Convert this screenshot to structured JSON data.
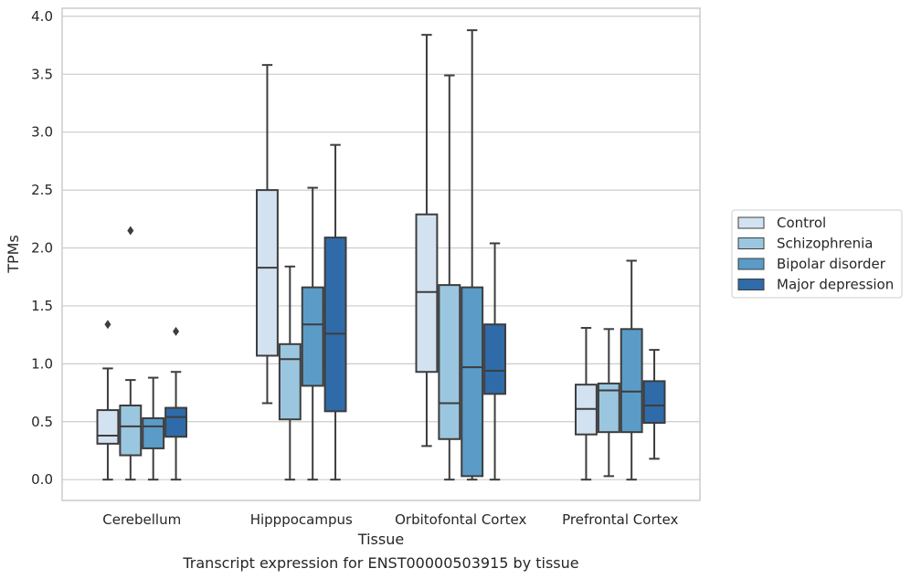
{
  "chart_data": {
    "type": "box",
    "caption": "Transcript expression for ENST00000503915 by tissue",
    "xlabel": "Tissue",
    "ylabel": "TPMs",
    "ylim": [
      -0.18,
      4.07
    ],
    "yticks": [
      "0.0",
      "0.5",
      "1.0",
      "1.5",
      "2.0",
      "2.5",
      "3.0",
      "3.5",
      "4.0"
    ],
    "grid": "horizontal",
    "legend_position": "right",
    "categories": [
      "Cerebellum",
      "Hipppocampus",
      "Orbitofontal Cortex",
      "Prefrontal Cortex"
    ],
    "series": [
      {
        "name": "Control",
        "color": "#d3e2f1",
        "boxes": [
          {
            "whislo": 0.0,
            "q1": 0.31,
            "med": 0.38,
            "q3": 0.6,
            "whishi": 0.96,
            "fliers": [
              1.34
            ]
          },
          {
            "whislo": 0.66,
            "q1": 1.07,
            "med": 1.83,
            "q3": 2.5,
            "whishi": 3.58,
            "fliers": []
          },
          {
            "whislo": 0.29,
            "q1": 0.93,
            "med": 1.62,
            "q3": 2.29,
            "whishi": 3.84,
            "fliers": []
          },
          {
            "whislo": 0.0,
            "q1": 0.39,
            "med": 0.61,
            "q3": 0.82,
            "whishi": 1.31,
            "fliers": []
          }
        ]
      },
      {
        "name": "Schizophrenia",
        "color": "#9bc6df",
        "boxes": [
          {
            "whislo": 0.0,
            "q1": 0.21,
            "med": 0.46,
            "q3": 0.64,
            "whishi": 0.86,
            "fliers": [
              2.15
            ]
          },
          {
            "whislo": 0.0,
            "q1": 0.52,
            "med": 1.04,
            "q3": 1.17,
            "whishi": 1.84,
            "fliers": []
          },
          {
            "whislo": 0.0,
            "q1": 0.35,
            "med": 0.66,
            "q3": 1.68,
            "whishi": 3.49,
            "fliers": []
          },
          {
            "whislo": 0.03,
            "q1": 0.41,
            "med": 0.77,
            "q3": 0.83,
            "whishi": 1.3,
            "fliers": []
          }
        ]
      },
      {
        "name": "Bipolar disorder",
        "color": "#5a9cc7",
        "boxes": [
          {
            "whislo": 0.0,
            "q1": 0.27,
            "med": 0.46,
            "q3": 0.53,
            "whishi": 0.88,
            "fliers": []
          },
          {
            "whislo": 0.0,
            "q1": 0.81,
            "med": 1.34,
            "q3": 1.66,
            "whishi": 2.52,
            "fliers": []
          },
          {
            "whislo": 0.0,
            "q1": 0.03,
            "med": 0.97,
            "q3": 1.66,
            "whishi": 3.88,
            "fliers": []
          },
          {
            "whislo": 0.0,
            "q1": 0.41,
            "med": 0.76,
            "q3": 1.3,
            "whishi": 1.89,
            "fliers": []
          }
        ]
      },
      {
        "name": "Major depression",
        "color": "#2f6ba9",
        "boxes": [
          {
            "whislo": 0.0,
            "q1": 0.37,
            "med": 0.54,
            "q3": 0.62,
            "whishi": 0.93,
            "fliers": [
              1.28
            ]
          },
          {
            "whislo": 0.0,
            "q1": 0.59,
            "med": 1.26,
            "q3": 2.09,
            "whishi": 2.89,
            "fliers": []
          },
          {
            "whislo": 0.0,
            "q1": 0.74,
            "med": 0.94,
            "q3": 1.34,
            "whishi": 2.04,
            "fliers": []
          },
          {
            "whislo": 0.18,
            "q1": 0.49,
            "med": 0.64,
            "q3": 0.85,
            "whishi": 1.12,
            "fliers": []
          }
        ]
      }
    ]
  }
}
